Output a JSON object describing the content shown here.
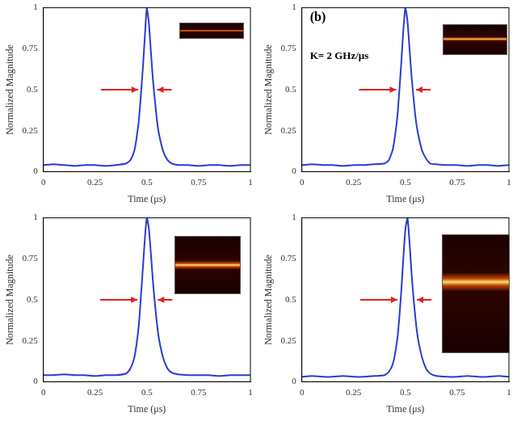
{
  "chart_data": [
    {
      "type": "line",
      "x_label": "Time (μs)",
      "y_label": "Normalized Magnitude",
      "color": "#2a3bd1",
      "xlim": [
        0,
        1
      ],
      "ylim": [
        0,
        1
      ],
      "xticks": [
        0,
        0.25,
        0.5,
        0.75,
        1
      ],
      "yticks": [
        0,
        0.25,
        0.5,
        0.75,
        1
      ],
      "grid": false,
      "x": [
        0,
        0.05,
        0.1,
        0.15,
        0.2,
        0.25,
        0.3,
        0.35,
        0.4,
        0.42,
        0.44,
        0.46,
        0.47,
        0.48,
        0.49,
        0.5,
        0.51,
        0.52,
        0.53,
        0.54,
        0.55,
        0.56,
        0.58,
        0.6,
        0.62,
        0.65,
        0.7,
        0.75,
        0.8,
        0.85,
        0.9,
        0.95,
        1
      ],
      "values": [
        0.04,
        0.045,
        0.04,
        0.035,
        0.04,
        0.04,
        0.035,
        0.04,
        0.05,
        0.07,
        0.13,
        0.3,
        0.45,
        0.62,
        0.82,
        1.0,
        0.9,
        0.72,
        0.55,
        0.42,
        0.3,
        0.22,
        0.12,
        0.07,
        0.05,
        0.04,
        0.04,
        0.035,
        0.04,
        0.04,
        0.035,
        0.04,
        0.04
      ]
    },
    {
      "type": "line",
      "x_label": "Time (μs)",
      "y_label": "Normalized Magnitude",
      "color": "#2a3bd1",
      "xlim": [
        0,
        1
      ],
      "ylim": [
        0,
        1
      ],
      "xticks": [
        0,
        0.25,
        0.5,
        0.75,
        1
      ],
      "yticks": [
        0,
        0.25,
        0.5,
        0.75,
        1
      ],
      "grid": false,
      "annotations": [
        "(b)",
        "K= 2 GHz/μs"
      ],
      "x": [
        0,
        0.05,
        0.1,
        0.15,
        0.2,
        0.25,
        0.3,
        0.35,
        0.4,
        0.42,
        0.44,
        0.46,
        0.47,
        0.48,
        0.49,
        0.5,
        0.51,
        0.52,
        0.53,
        0.54,
        0.55,
        0.56,
        0.58,
        0.6,
        0.62,
        0.65,
        0.7,
        0.75,
        0.8,
        0.85,
        0.9,
        0.95,
        1
      ],
      "values": [
        0.04,
        0.045,
        0.04,
        0.04,
        0.035,
        0.04,
        0.04,
        0.045,
        0.05,
        0.07,
        0.14,
        0.32,
        0.48,
        0.66,
        0.86,
        1.0,
        0.92,
        0.75,
        0.58,
        0.44,
        0.32,
        0.24,
        0.13,
        0.08,
        0.05,
        0.045,
        0.04,
        0.04,
        0.035,
        0.04,
        0.04,
        0.035,
        0.04
      ]
    },
    {
      "type": "line",
      "x_label": "Time (μs)",
      "y_label": "Normalized Magnitude",
      "color": "#2a3bd1",
      "xlim": [
        0,
        1
      ],
      "ylim": [
        0,
        1
      ],
      "xticks": [
        0,
        0.25,
        0.5,
        0.75,
        1
      ],
      "yticks": [
        0,
        0.25,
        0.5,
        0.75,
        1
      ],
      "grid": false,
      "x": [
        0,
        0.05,
        0.1,
        0.15,
        0.2,
        0.25,
        0.3,
        0.35,
        0.4,
        0.42,
        0.44,
        0.46,
        0.47,
        0.48,
        0.49,
        0.5,
        0.51,
        0.52,
        0.53,
        0.54,
        0.55,
        0.56,
        0.58,
        0.6,
        0.62,
        0.65,
        0.7,
        0.75,
        0.8,
        0.85,
        0.9,
        0.95,
        1
      ],
      "values": [
        0.04,
        0.04,
        0.045,
        0.04,
        0.04,
        0.035,
        0.04,
        0.04,
        0.05,
        0.08,
        0.15,
        0.33,
        0.5,
        0.68,
        0.87,
        1.0,
        0.93,
        0.77,
        0.6,
        0.46,
        0.34,
        0.25,
        0.14,
        0.08,
        0.055,
        0.045,
        0.04,
        0.04,
        0.04,
        0.035,
        0.04,
        0.04,
        0.04
      ]
    },
    {
      "type": "line",
      "x_label": "Time (μs)",
      "y_label": "Normalized Magnitude",
      "color": "#2a3bd1",
      "xlim": [
        0,
        1
      ],
      "ylim": [
        0,
        1
      ],
      "xticks": [
        0,
        0.25,
        0.5,
        0.75,
        1
      ],
      "yticks": [
        0,
        0.25,
        0.5,
        0.75,
        1
      ],
      "grid": false,
      "x": [
        0,
        0.05,
        0.1,
        0.15,
        0.2,
        0.25,
        0.3,
        0.35,
        0.4,
        0.42,
        0.44,
        0.46,
        0.47,
        0.48,
        0.49,
        0.5,
        0.51,
        0.52,
        0.53,
        0.54,
        0.55,
        0.56,
        0.58,
        0.6,
        0.62,
        0.65,
        0.7,
        0.75,
        0.8,
        0.85,
        0.9,
        0.95,
        1
      ],
      "values": [
        0.03,
        0.035,
        0.03,
        0.03,
        0.035,
        0.03,
        0.03,
        0.035,
        0.04,
        0.06,
        0.11,
        0.25,
        0.38,
        0.55,
        0.75,
        0.93,
        1.0,
        0.85,
        0.66,
        0.5,
        0.37,
        0.27,
        0.15,
        0.08,
        0.05,
        0.035,
        0.03,
        0.03,
        0.035,
        0.03,
        0.03,
        0.035,
        0.03
      ]
    }
  ]
}
